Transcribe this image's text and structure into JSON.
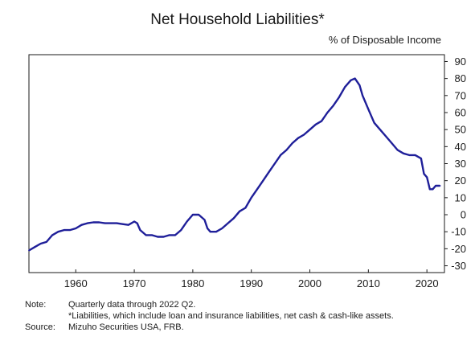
{
  "chart_data": {
    "type": "line",
    "title": "Net Household Liabilities*",
    "ylabel": "% of Disposable Income",
    "xlabel": "",
    "xlim": [
      1952,
      2023
    ],
    "ylim": [
      -30,
      90
    ],
    "x_ticks": [
      1960,
      1970,
      1980,
      1990,
      2000,
      2010,
      2020
    ],
    "y_ticks": [
      90,
      80,
      70,
      60,
      50,
      40,
      30,
      20,
      10,
      0,
      -10,
      -20,
      -30
    ],
    "y_axis_side": "right",
    "grid": false,
    "legend": "none",
    "series": [
      {
        "color": "#1f1f99",
        "points": [
          [
            1952.0,
            -21
          ],
          [
            1953.0,
            -19
          ],
          [
            1954.0,
            -17
          ],
          [
            1955.0,
            -16
          ],
          [
            1956.0,
            -12
          ],
          [
            1957.0,
            -10
          ],
          [
            1958.0,
            -9
          ],
          [
            1959.0,
            -9
          ],
          [
            1960.0,
            -8
          ],
          [
            1961.0,
            -6
          ],
          [
            1962.0,
            -5
          ],
          [
            1963.0,
            -4.5
          ],
          [
            1964.0,
            -4.5
          ],
          [
            1965.0,
            -5
          ],
          [
            1966.0,
            -5
          ],
          [
            1967.0,
            -5
          ],
          [
            1968.0,
            -5.5
          ],
          [
            1969.0,
            -6
          ],
          [
            1970.0,
            -4
          ],
          [
            1970.5,
            -5
          ],
          [
            1971.0,
            -9
          ],
          [
            1972.0,
            -12
          ],
          [
            1973.0,
            -12
          ],
          [
            1974.0,
            -13
          ],
          [
            1975.0,
            -13
          ],
          [
            1976.0,
            -12
          ],
          [
            1977.0,
            -12
          ],
          [
            1978.0,
            -9
          ],
          [
            1979.0,
            -4
          ],
          [
            1980.0,
            0
          ],
          [
            1981.0,
            0
          ],
          [
            1982.0,
            -3
          ],
          [
            1982.5,
            -8
          ],
          [
            1983.0,
            -10
          ],
          [
            1984.0,
            -10
          ],
          [
            1985.0,
            -8
          ],
          [
            1986.0,
            -5
          ],
          [
            1987.0,
            -2
          ],
          [
            1988.0,
            2
          ],
          [
            1989.0,
            4
          ],
          [
            1990.0,
            10
          ],
          [
            1991.0,
            15
          ],
          [
            1992.0,
            20
          ],
          [
            1993.0,
            25
          ],
          [
            1994.0,
            30
          ],
          [
            1995.0,
            35
          ],
          [
            1996.0,
            38
          ],
          [
            1997.0,
            42
          ],
          [
            1998.0,
            45
          ],
          [
            1999.0,
            47
          ],
          [
            2000.0,
            50
          ],
          [
            2001.0,
            53
          ],
          [
            2002.0,
            55
          ],
          [
            2003.0,
            60
          ],
          [
            2004.0,
            64
          ],
          [
            2005.0,
            69
          ],
          [
            2006.0,
            75
          ],
          [
            2007.0,
            79
          ],
          [
            2007.7,
            80
          ],
          [
            2008.5,
            76
          ],
          [
            2009.0,
            70
          ],
          [
            2010.0,
            62
          ],
          [
            2011.0,
            54
          ],
          [
            2012.0,
            50
          ],
          [
            2013.0,
            46
          ],
          [
            2014.0,
            42
          ],
          [
            2015.0,
            38
          ],
          [
            2016.0,
            36
          ],
          [
            2017.0,
            35
          ],
          [
            2018.0,
            35
          ],
          [
            2019.0,
            33
          ],
          [
            2019.5,
            24
          ],
          [
            2020.0,
            22
          ],
          [
            2020.5,
            15
          ],
          [
            2021.0,
            15
          ],
          [
            2021.5,
            17
          ],
          [
            2022.25,
            17
          ]
        ]
      }
    ]
  },
  "notes": [
    {
      "label": "Note:",
      "text": "Quarterly data through 2022 Q2."
    },
    {
      "label": "",
      "text": "*Liabilities, which include loan and insurance liabilities, net cash & cash-like assets."
    },
    {
      "label": "Source:",
      "text": "Mizuho Securities USA, FRB."
    }
  ]
}
